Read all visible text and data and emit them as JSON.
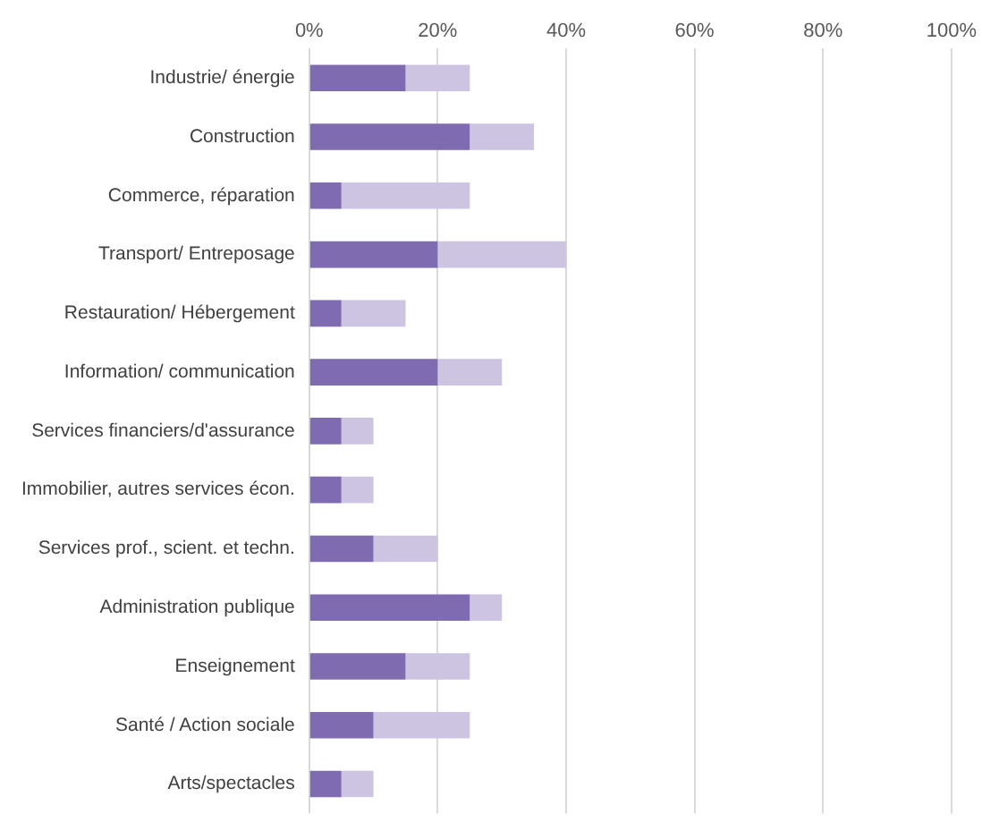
{
  "chart_data": {
    "type": "bar",
    "orientation": "horizontal",
    "stacked": true,
    "categories": [
      "Industrie/ énergie",
      "Construction",
      "Commerce, réparation",
      "Transport/ Entreposage",
      "Restauration/ Hébergement",
      "Information/ communication",
      "Services financiers/d'assurance",
      "Immobilier, autres services écon.",
      "Services prof., scient. et techn.",
      "Administration publique",
      "Enseignement",
      "Santé / Action sociale",
      "Arts/spectacles"
    ],
    "series": [
      {
        "color": "#7f6bb0",
        "values": [
          15,
          25,
          5,
          20,
          5,
          20,
          5,
          5,
          10,
          25,
          15,
          10,
          5
        ]
      },
      {
        "color": "#cdc4e2",
        "values": [
          10,
          10,
          20,
          20,
          10,
          10,
          5,
          5,
          10,
          5,
          10,
          15,
          5
        ]
      }
    ],
    "xlim": [
      0,
      100
    ],
    "xticks": [
      {
        "value": 0,
        "label": "0%"
      },
      {
        "value": 20,
        "label": "20%"
      },
      {
        "value": 40,
        "label": "40%"
      },
      {
        "value": 60,
        "label": "60%"
      },
      {
        "value": 80,
        "label": "80%"
      },
      {
        "value": 100,
        "label": "100%"
      }
    ],
    "grid": "x",
    "legend": false
  }
}
